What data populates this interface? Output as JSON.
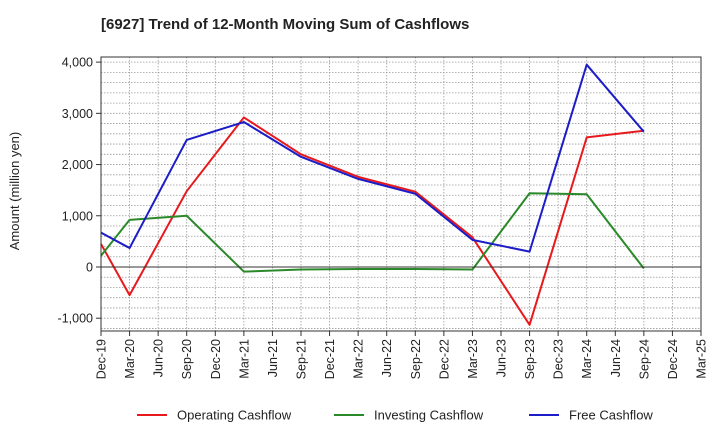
{
  "chart_data": {
    "type": "line",
    "title": "[6927]  Trend of 12-Month Moving Sum of Cashflows",
    "xlabel": "",
    "ylabel": "Amount (million yen)",
    "categories": [
      "Dec-19",
      "Mar-20",
      "Jun-20",
      "Sep-20",
      "Dec-20",
      "Mar-21",
      "Jun-21",
      "Sep-21",
      "Dec-21",
      "Mar-22",
      "Jun-22",
      "Sep-22",
      "Dec-22",
      "Mar-23",
      "Jun-23",
      "Sep-23",
      "Dec-23",
      "Mar-24",
      "Jun-24",
      "Sep-24",
      "Dec-24",
      "Mar-25"
    ],
    "yticks": [
      -1000,
      0,
      1000,
      2000,
      3000,
      4000
    ],
    "ytick_labels": [
      "-1,000",
      "0",
      "1,000",
      "2,000",
      "3,000",
      "4,000"
    ],
    "ylim": [
      -1250,
      4100
    ],
    "grid": true,
    "legend_position": "bottom",
    "series": [
      {
        "name": "Operating Cashflow",
        "color": "#e8191c",
        "values": [
          450,
          -550,
          null,
          1480,
          null,
          2920,
          null,
          2200,
          null,
          1760,
          null,
          1470,
          null,
          580,
          null,
          -1130,
          null,
          2530,
          null,
          2660,
          null,
          null
        ]
      },
      {
        "name": "Investing Cashflow",
        "color": "#2a8a2a",
        "values": [
          220,
          920,
          null,
          1000,
          null,
          -90,
          null,
          -50,
          null,
          -40,
          null,
          -40,
          null,
          -50,
          null,
          1440,
          null,
          1420,
          null,
          -30,
          null,
          null
        ]
      },
      {
        "name": "Free Cashflow",
        "color": "#1c1cc8",
        "values": [
          670,
          370,
          null,
          2480,
          null,
          2830,
          null,
          2150,
          null,
          1720,
          null,
          1430,
          null,
          530,
          null,
          300,
          null,
          3950,
          null,
          2640,
          null,
          null
        ]
      }
    ]
  }
}
